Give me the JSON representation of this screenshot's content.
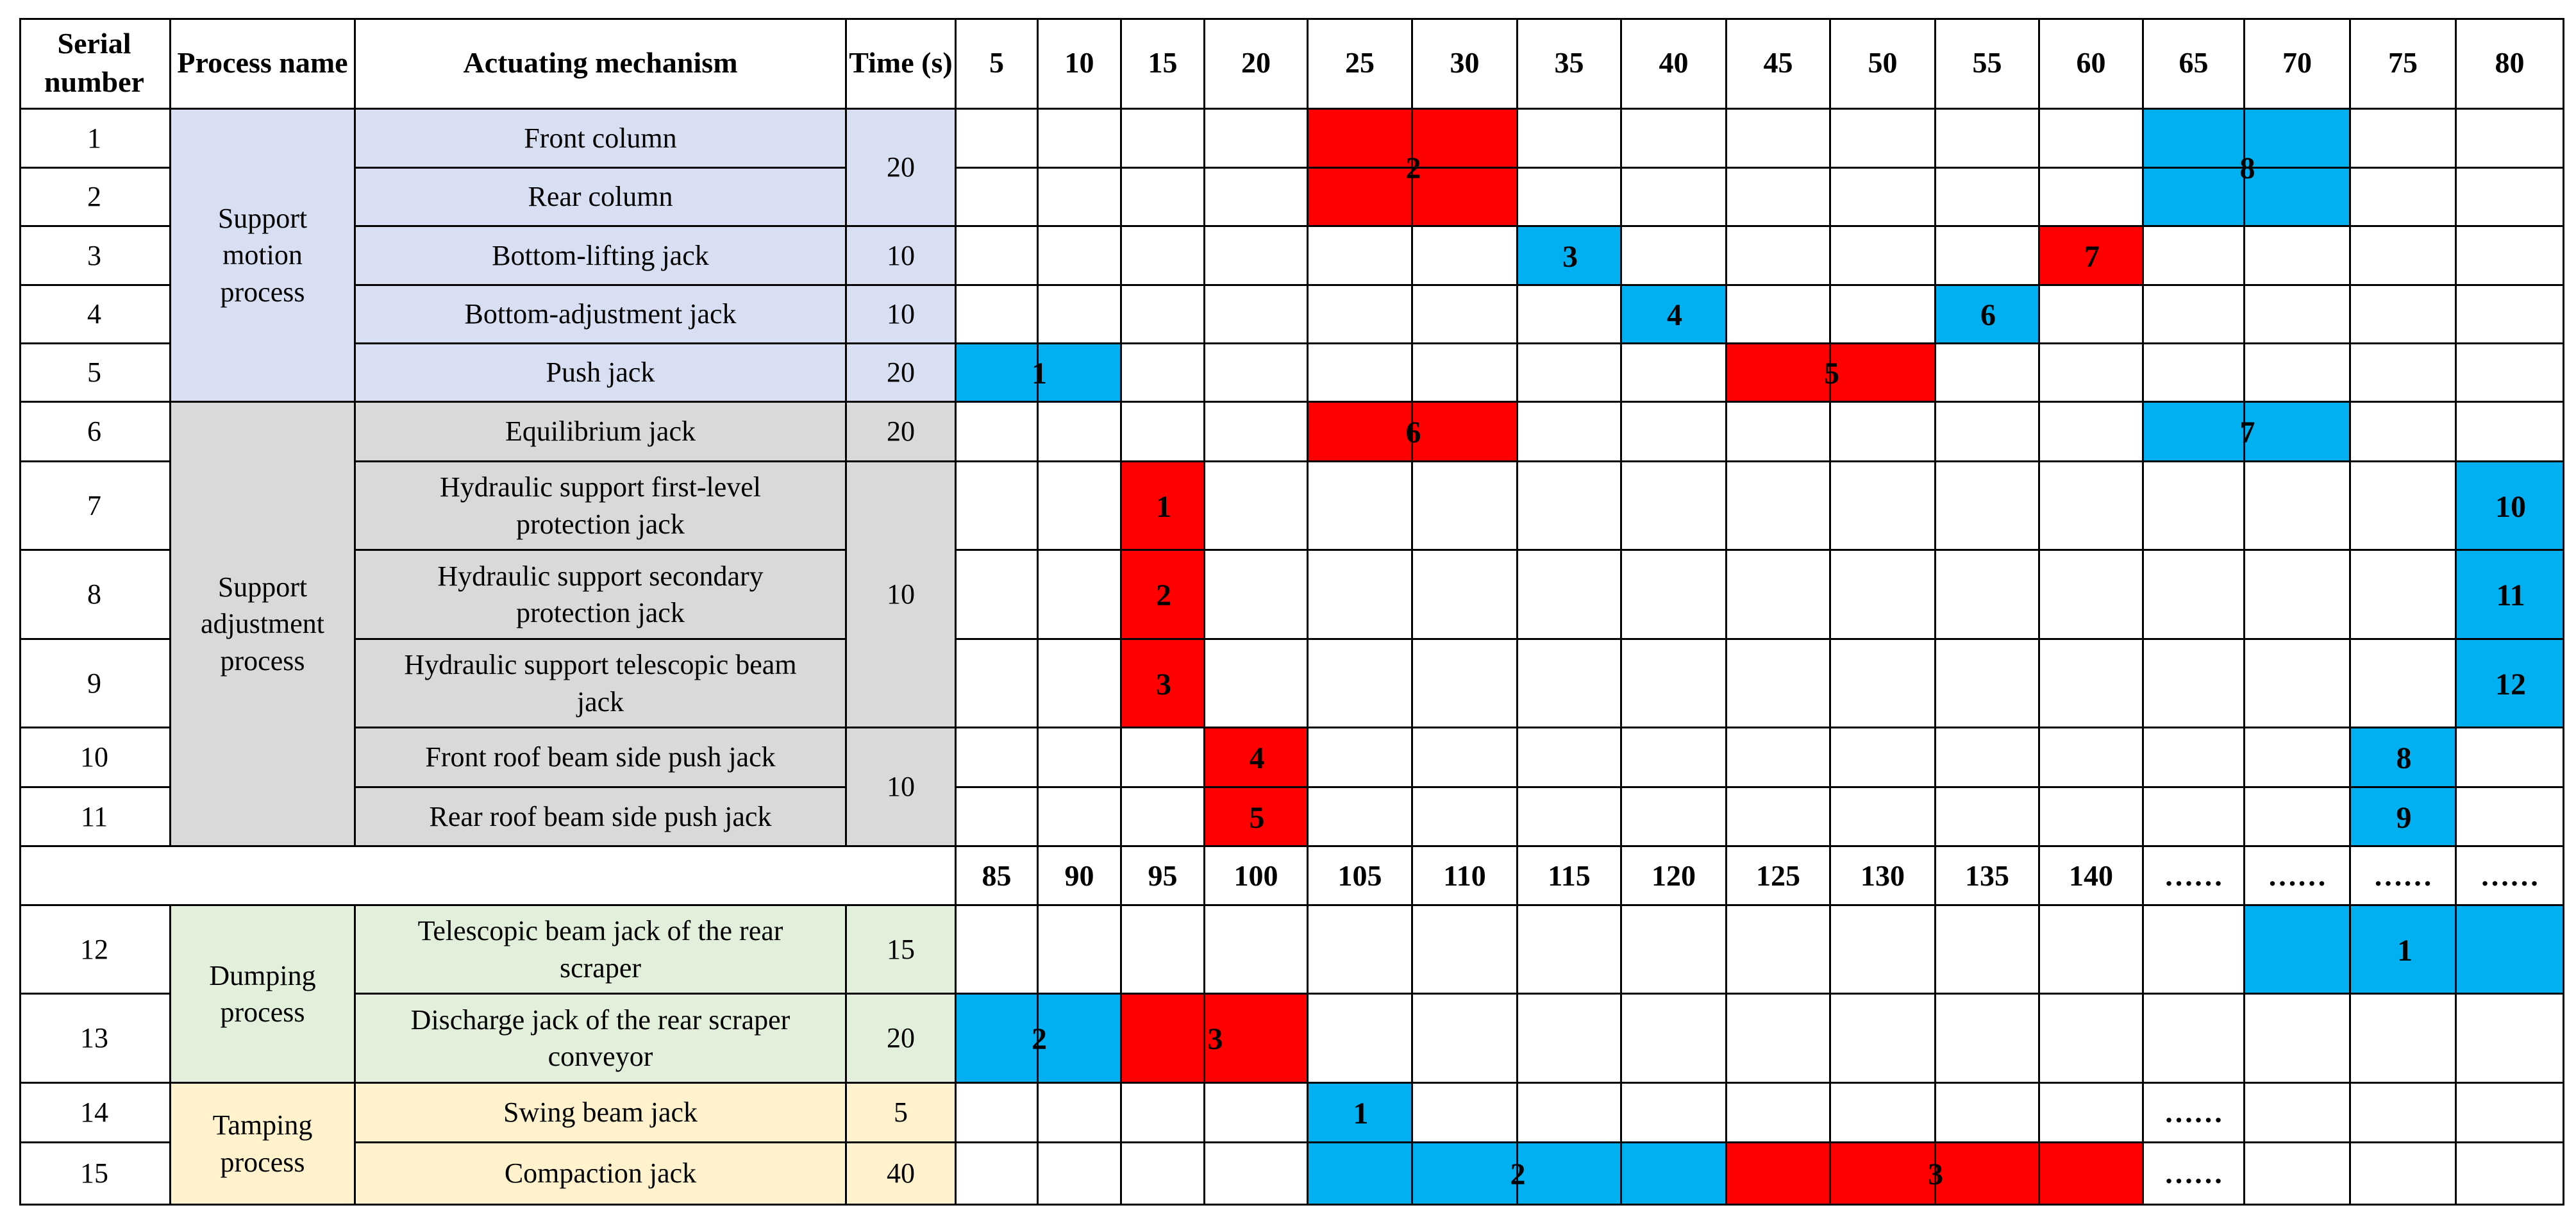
{
  "headers": {
    "serial": "Serial number",
    "process": "Process name",
    "mechanism": "Actuating mechanism",
    "time": "Time (s)",
    "ticks_top": [
      "5",
      "10",
      "15",
      "20",
      "25",
      "30",
      "35",
      "40",
      "45",
      "50",
      "55",
      "60",
      "65",
      "70",
      "75",
      "80"
    ],
    "ticks_bottom": [
      "85",
      "90",
      "95",
      "100",
      "105",
      "110",
      "115",
      "120",
      "125",
      "130",
      "135",
      "140",
      "……",
      "……",
      "……",
      "……"
    ]
  },
  "processes": [
    {
      "name": "Support motion process",
      "rows": [
        1,
        5
      ],
      "color": "#d9dff2"
    },
    {
      "name": "Support adjustment process",
      "rows": [
        6,
        11
      ],
      "color": "#d9d9d9"
    },
    {
      "name": "Dumping process",
      "rows": [
        12,
        13
      ],
      "color": "#e2efda"
    },
    {
      "name": "Tamping process",
      "rows": [
        14,
        15
      ],
      "color": "#fff2cc"
    }
  ],
  "rows": [
    {
      "serial": "1",
      "mechanism": "Front column"
    },
    {
      "serial": "2",
      "mechanism": "Rear column"
    },
    {
      "serial": "3",
      "mechanism": "Bottom-lifting jack"
    },
    {
      "serial": "4",
      "mechanism": "Bottom-adjustment jack"
    },
    {
      "serial": "5",
      "mechanism": "Push jack"
    },
    {
      "serial": "6",
      "mechanism": "Equilibrium jack"
    },
    {
      "serial": "7",
      "mechanism": "Hydraulic support first-level protection jack"
    },
    {
      "serial": "8",
      "mechanism": "Hydraulic support secondary protection jack"
    },
    {
      "serial": "9",
      "mechanism": "Hydraulic support telescopic beam jack"
    },
    {
      "serial": "10",
      "mechanism": "Front roof beam side push jack"
    },
    {
      "serial": "11",
      "mechanism": "Rear roof beam side push jack"
    },
    {
      "serial": "12",
      "mechanism": "Telescopic beam jack of the rear scraper"
    },
    {
      "serial": "13",
      "mechanism": "Discharge jack of the rear scraper conveyor"
    },
    {
      "serial": "14",
      "mechanism": "Swing beam jack"
    },
    {
      "serial": "15",
      "mechanism": "Compaction jack"
    }
  ],
  "times": [
    {
      "value": "20",
      "rows": [
        1,
        2
      ]
    },
    {
      "value": "10",
      "rows": [
        3,
        3
      ]
    },
    {
      "value": "10",
      "rows": [
        4,
        4
      ]
    },
    {
      "value": "20",
      "rows": [
        5,
        5
      ]
    },
    {
      "value": "20",
      "rows": [
        6,
        6
      ]
    },
    {
      "value": "10",
      "rows": [
        7,
        9
      ]
    },
    {
      "value": "10",
      "rows": [
        10,
        11
      ]
    },
    {
      "value": "15",
      "rows": [
        12,
        12
      ]
    },
    {
      "value": "20",
      "rows": [
        13,
        13
      ]
    },
    {
      "value": "5",
      "rows": [
        14,
        14
      ]
    },
    {
      "value": "40",
      "rows": [
        15,
        15
      ]
    }
  ],
  "colors": {
    "blue": "#00b0f0",
    "red": "#ff0000"
  },
  "bars": [
    {
      "rows": [
        1,
        2
      ],
      "cols": [
        5,
        6
      ],
      "color": "red",
      "label": "2"
    },
    {
      "rows": [
        1,
        2
      ],
      "cols": [
        13,
        14
      ],
      "color": "blue",
      "label": "8"
    },
    {
      "rows": [
        3,
        3
      ],
      "cols": [
        7,
        7
      ],
      "color": "blue",
      "label": "3"
    },
    {
      "rows": [
        3,
        3
      ],
      "cols": [
        12,
        12
      ],
      "color": "red",
      "label": "7"
    },
    {
      "rows": [
        4,
        4
      ],
      "cols": [
        8,
        8
      ],
      "color": "blue",
      "label": "4"
    },
    {
      "rows": [
        4,
        4
      ],
      "cols": [
        11,
        11
      ],
      "color": "blue",
      "label": "6"
    },
    {
      "rows": [
        5,
        5
      ],
      "cols": [
        1,
        2
      ],
      "color": "blue",
      "label": "1"
    },
    {
      "rows": [
        5,
        5
      ],
      "cols": [
        9,
        10
      ],
      "color": "red",
      "label": "5"
    },
    {
      "rows": [
        6,
        6
      ],
      "cols": [
        5,
        6
      ],
      "color": "red",
      "label": "6"
    },
    {
      "rows": [
        6,
        6
      ],
      "cols": [
        13,
        14
      ],
      "color": "blue",
      "label": "7"
    },
    {
      "rows": [
        7,
        7
      ],
      "cols": [
        3,
        3
      ],
      "color": "red",
      "label": "1"
    },
    {
      "rows": [
        8,
        8
      ],
      "cols": [
        3,
        3
      ],
      "color": "red",
      "label": "2"
    },
    {
      "rows": [
        9,
        9
      ],
      "cols": [
        3,
        3
      ],
      "color": "red",
      "label": "3"
    },
    {
      "rows": [
        7,
        7
      ],
      "cols": [
        16,
        16
      ],
      "color": "blue",
      "label": "10"
    },
    {
      "rows": [
        8,
        8
      ],
      "cols": [
        16,
        16
      ],
      "color": "blue",
      "label": "11"
    },
    {
      "rows": [
        9,
        9
      ],
      "cols": [
        16,
        16
      ],
      "color": "blue",
      "label": "12"
    },
    {
      "rows": [
        10,
        10
      ],
      "cols": [
        4,
        4
      ],
      "color": "red",
      "label": "4"
    },
    {
      "rows": [
        11,
        11
      ],
      "cols": [
        4,
        4
      ],
      "color": "red",
      "label": "5"
    },
    {
      "rows": [
        10,
        10
      ],
      "cols": [
        15,
        15
      ],
      "color": "blue",
      "label": "8"
    },
    {
      "rows": [
        11,
        11
      ],
      "cols": [
        15,
        15
      ],
      "color": "blue",
      "label": "9"
    },
    {
      "rows": [
        12,
        12
      ],
      "cols": [
        14,
        16
      ],
      "color": "blue",
      "label": "1"
    },
    {
      "rows": [
        13,
        13
      ],
      "cols": [
        1,
        2
      ],
      "color": "blue",
      "label": "2"
    },
    {
      "rows": [
        13,
        13
      ],
      "cols": [
        3,
        4
      ],
      "color": "red",
      "label": "3"
    },
    {
      "rows": [
        14,
        14
      ],
      "cols": [
        5,
        5
      ],
      "color": "blue",
      "label": "1"
    },
    {
      "rows": [
        15,
        15
      ],
      "cols": [
        5,
        8
      ],
      "color": "blue",
      "label": "2"
    },
    {
      "rows": [
        15,
        15
      ],
      "cols": [
        9,
        12
      ],
      "color": "red",
      "label": "3"
    }
  ],
  "ellipsis_cells": [
    {
      "row": 14,
      "col": 13,
      "text": "……"
    },
    {
      "row": 15,
      "col": 13,
      "text": "……"
    }
  ]
}
